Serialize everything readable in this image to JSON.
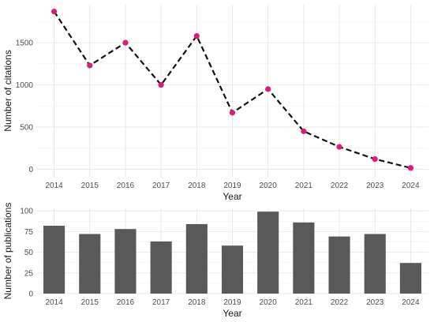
{
  "colors": {
    "line": "#111111",
    "point": "#e0197d",
    "bar": "#595959"
  },
  "chart_data": [
    {
      "type": "line",
      "x": [
        "2014",
        "2015",
        "2016",
        "2017",
        "2018",
        "2019",
        "2020",
        "2021",
        "2022",
        "2023",
        "2024"
      ],
      "series": [
        {
          "values": [
            1870,
            1230,
            1500,
            1000,
            1580,
            670,
            950,
            450,
            265,
            120,
            15
          ]
        }
      ],
      "xlabel": "Year",
      "ylabel": "Number of citations",
      "yticks": [
        0,
        500,
        1000,
        1500
      ],
      "ylim": [
        -90,
        1950
      ],
      "line_style": "dashed",
      "markers": true,
      "grid": true
    },
    {
      "type": "bar",
      "categories": [
        "2014",
        "2015",
        "2016",
        "2017",
        "2018",
        "2019",
        "2020",
        "2021",
        "2022",
        "2023",
        "2024"
      ],
      "values": [
        82,
        72,
        78,
        63,
        84,
        58,
        99,
        86,
        69,
        72,
        37
      ],
      "xlabel": "Year",
      "ylabel": "Number of publications",
      "yticks": [
        0,
        25,
        50,
        75,
        100
      ],
      "ylim": [
        0,
        103
      ],
      "grid": true
    }
  ]
}
